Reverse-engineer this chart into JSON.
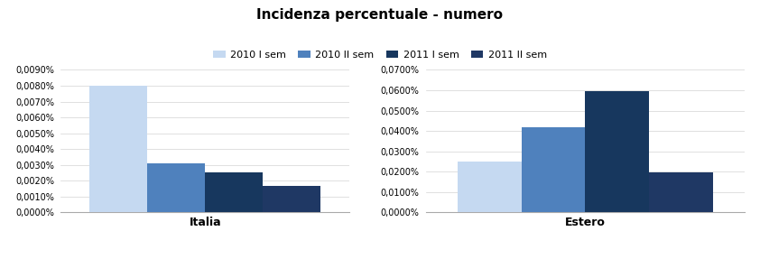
{
  "title": "Incidenza percentuale - numero",
  "legend_labels": [
    "2010 I sem",
    "2010 II sem",
    "2011 I sem",
    "2011 II sem"
  ],
  "colors": [
    "#c5d9f1",
    "#4f81bd",
    "#17375e",
    "#1f3864"
  ],
  "italia_values": [
    8e-05,
    3.1e-05,
    2.5e-05,
    1.7e-05
  ],
  "estero_values": [
    0.00025,
    0.00042,
    0.000595,
    0.000198
  ],
  "italia_ylim": [
    0,
    9e-05
  ],
  "estero_ylim": [
    0,
    0.0007
  ],
  "italia_yticks": [
    0,
    1e-05,
    2e-05,
    3e-05,
    4e-05,
    5e-05,
    6e-05,
    7e-05,
    8e-05,
    9e-05
  ],
  "estero_yticks": [
    0,
    0.0001,
    0.0002,
    0.0003,
    0.0004,
    0.0005,
    0.0006,
    0.0007
  ],
  "group_labels": [
    "Italia",
    "Estero"
  ],
  "background_color": "#ffffff",
  "grid_color": "#d3d3d3"
}
